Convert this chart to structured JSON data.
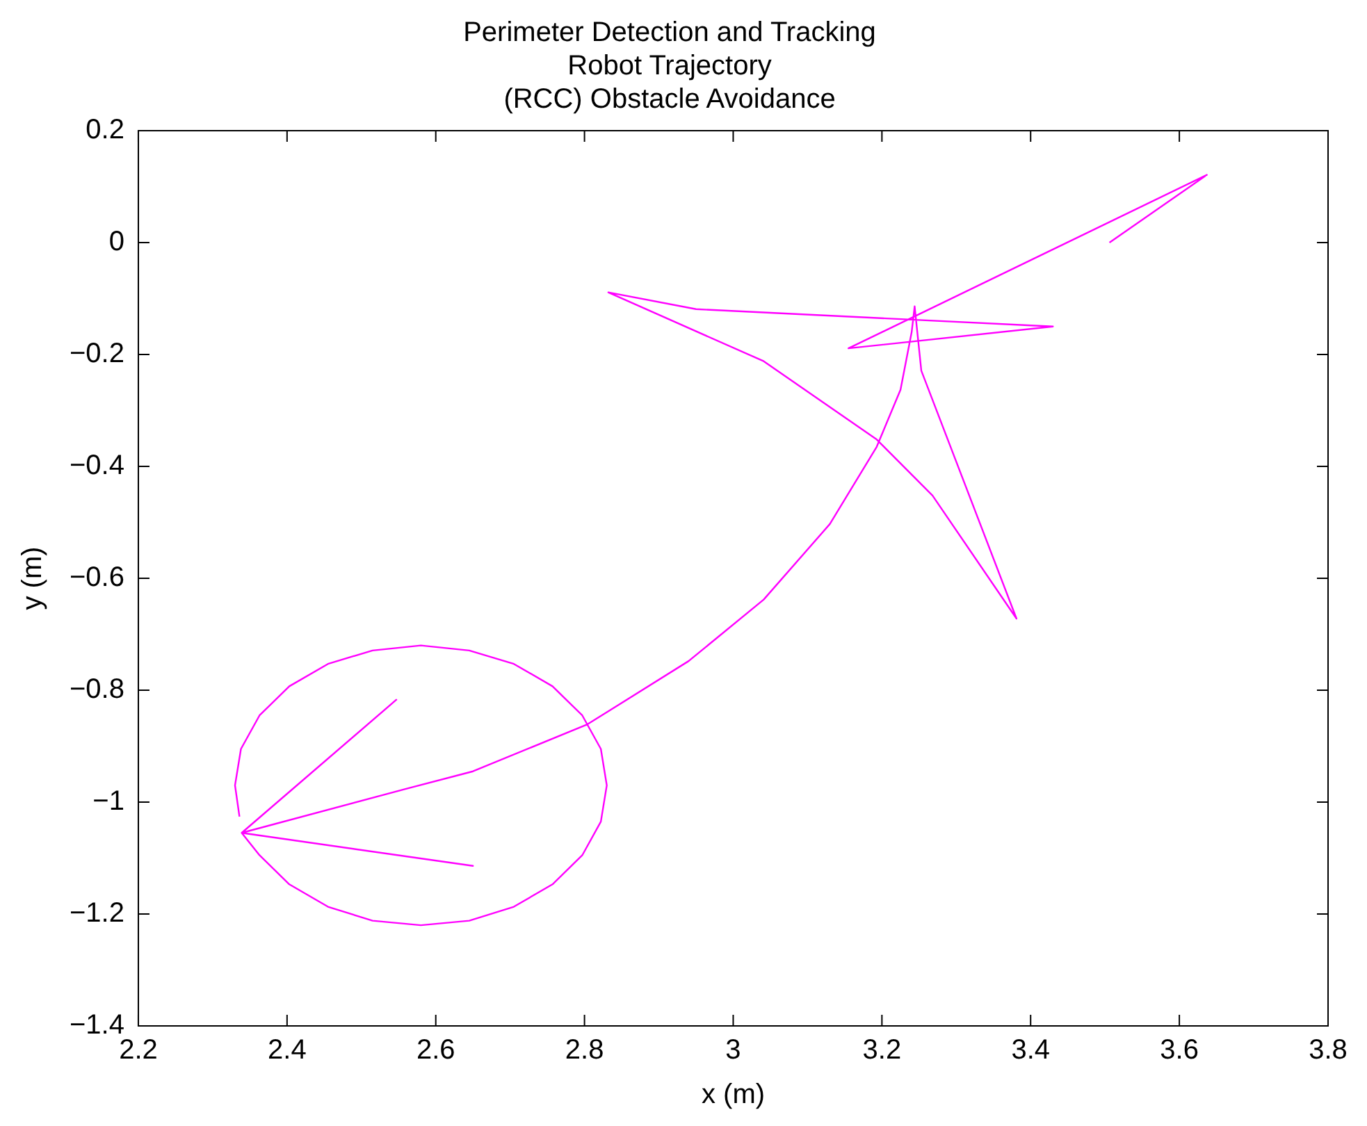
{
  "chart_data": {
    "type": "line",
    "title": "Perimeter Detection and Tracking\nRobot Trajectory\n(RCC) Obstacle Avoidance",
    "xlabel": "x (m)",
    "ylabel": "y (m)",
    "xlim": [
      2.2,
      3.8
    ],
    "xticks": [
      2.2,
      2.4,
      2.6,
      2.8,
      3,
      3.2,
      3.4,
      3.6,
      3.8
    ],
    "ylim": [
      -1.4,
      0.2
    ],
    "yticks": [
      -1.4,
      -1.2,
      -1,
      -0.8,
      -0.6,
      -0.4,
      -0.2,
      0,
      0.2
    ],
    "grid": false,
    "legend": false,
    "marker": "none",
    "line_style": "solid",
    "series": [
      {
        "color": "#ff00ff",
        "x": [
          3.506,
          3.637,
          3.155,
          3.43,
          2.95,
          2.832,
          3.041,
          3.193,
          3.268,
          3.381,
          3.253,
          3.244,
          3.24,
          3.225,
          3.193,
          3.13,
          3.041,
          2.94,
          2.804,
          2.65,
          2.561,
          2.339,
          2.547,
          2.339,
          2.65,
          2.339,
          2.363,
          2.403,
          2.455,
          2.515,
          2.58,
          2.645,
          2.705,
          2.757,
          2.797,
          2.822,
          2.83,
          2.822,
          2.797,
          2.757,
          2.705,
          2.645,
          2.58,
          2.515,
          2.455,
          2.403,
          2.363,
          2.338,
          2.33,
          2.336
        ],
        "values": [
          0.0,
          0.121,
          -0.189,
          -0.15,
          -0.119,
          -0.089,
          -0.212,
          -0.352,
          -0.452,
          -0.672,
          -0.229,
          -0.114,
          -0.16,
          -0.263,
          -0.365,
          -0.503,
          -0.638,
          -0.748,
          -0.861,
          -0.945,
          -0.976,
          -1.055,
          -0.817,
          -1.055,
          -1.114,
          -1.055,
          -1.095,
          -1.147,
          -1.187,
          -1.212,
          -1.22,
          -1.212,
          -1.187,
          -1.147,
          -1.095,
          -1.035,
          -0.97,
          -0.905,
          -0.845,
          -0.793,
          -0.753,
          -0.729,
          -0.72,
          -0.729,
          -0.753,
          -0.793,
          -0.845,
          -0.905,
          -0.97,
          -1.026
        ]
      }
    ]
  }
}
